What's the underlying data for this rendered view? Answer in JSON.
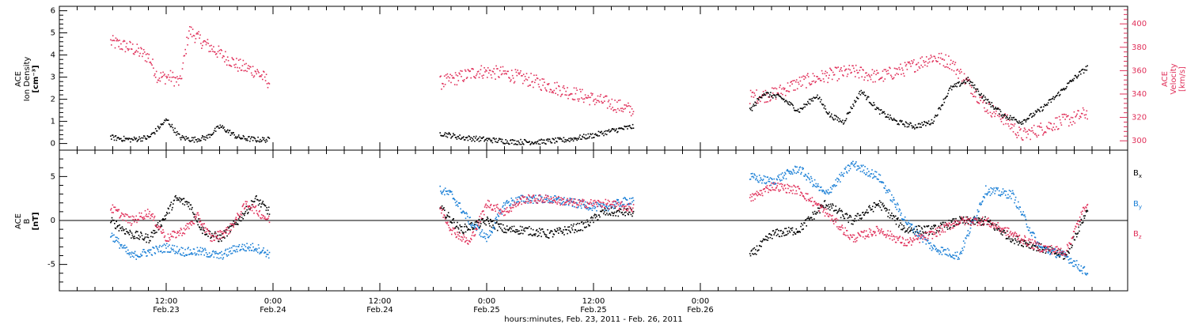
{
  "chart_data": [
    {
      "type": "scatter",
      "panel": "top",
      "left_axis_label": [
        "ACE",
        "Ion Density",
        "[cm⁻³]"
      ],
      "right_axis_label": [
        "ACE",
        "Velocity",
        "[km/s]"
      ],
      "left_ylim": [
        -0.3,
        6.2
      ],
      "right_ylim": [
        292,
        415
      ],
      "left_ticks": [
        0,
        1,
        2,
        3,
        4,
        5,
        6
      ],
      "right_ticks": [
        300,
        320,
        340,
        360,
        380,
        400
      ],
      "colors": {
        "density": "#000000",
        "velocity": "#e0305a"
      },
      "series": [
        {
          "name": "Ion Density",
          "axis": "left",
          "color": "#000000",
          "segments": [
            {
              "x": [
                5.7,
                8,
                10,
                12,
                13.5,
                15,
                16.5,
                18,
                20,
                22,
                23.6
              ],
              "y": [
                0.3,
                0.2,
                0.3,
                1.1,
                0.3,
                0.2,
                0.3,
                0.8,
                0.3,
                0.2,
                0.2
              ]
            },
            {
              "x": [
                42.7,
                45,
                48,
                51,
                54,
                57,
                60,
                62,
                64.5
              ],
              "y": [
                0.5,
                0.3,
                0.2,
                0.1,
                0.1,
                0.2,
                0.4,
                0.6,
                0.8
              ]
            },
            {
              "x": [
                77.5,
                79,
                81,
                83,
                85,
                86.5,
                88,
                90,
                92,
                94,
                96,
                98,
                100,
                102,
                104,
                106,
                108,
                110,
                112,
                114,
                115.5
              ],
              "y": [
                1.5,
                2.3,
                2.1,
                1.5,
                2.2,
                1.3,
                1.0,
                2.4,
                1.5,
                1.0,
                0.8,
                1.0,
                2.5,
                2.9,
                2.0,
                1.3,
                1.0,
                1.5,
                2.2,
                3.0,
                3.5
              ]
            }
          ]
        },
        {
          "name": "Velocity",
          "axis": "right",
          "color": "#e0305a",
          "segments": [
            {
              "x": [
                5.7,
                8,
                10,
                11,
                12.5,
                13.5,
                14.5,
                16,
                18,
                20,
                22,
                23.6
              ],
              "y": [
                385,
                380,
                372,
                355,
                355,
                350,
                395,
                385,
                375,
                365,
                360,
                350
              ]
            },
            {
              "x": [
                42.7,
                45,
                47,
                50,
                53,
                56,
                59,
                62,
                64.5
              ],
              "y": [
                350,
                355,
                360,
                358,
                352,
                345,
                338,
                332,
                326
              ]
            },
            {
              "x": [
                77.5,
                80,
                83,
                86,
                89,
                92,
                95,
                98,
                100,
                102,
                104,
                106,
                108,
                110,
                112,
                114,
                115.5
              ],
              "y": [
                338,
                340,
                350,
                356,
                360,
                355,
                362,
                372,
                368,
                350,
                330,
                320,
                305,
                310,
                316,
                320,
                325
              ]
            }
          ]
        }
      ]
    },
    {
      "type": "scatter",
      "panel": "bottom",
      "left_axis_label": [
        "ACE",
        "B",
        "[nT]"
      ],
      "ylim": [
        -8,
        8
      ],
      "ticks": [
        -5,
        0,
        5
      ],
      "zero_line": true,
      "colors": {
        "Bx": "#000000",
        "By": "#1a7fd6",
        "Bz": "#e0305a"
      },
      "legend": [
        {
          "label": "B",
          "sub": "x",
          "color": "#000000"
        },
        {
          "label": "B",
          "sub": "y",
          "color": "#1a7fd6"
        },
        {
          "label": "B",
          "sub": "z",
          "color": "#e0305a"
        }
      ],
      "series": [
        {
          "name": "Bx",
          "color": "#000000",
          "segments": [
            {
              "x": [
                5.7,
                8,
                10,
                11.5,
                13,
                14.5,
                16,
                18,
                20,
                22,
                23.6
              ],
              "y": [
                0,
                -1.5,
                -2,
                0,
                2.5,
                2.0,
                -1,
                -2,
                0,
                2.5,
                1
              ]
            },
            {
              "x": [
                42.7,
                45,
                48,
                50,
                52,
                55,
                57,
                59,
                61,
                64.5
              ],
              "y": [
                1.5,
                -1,
                0,
                -1,
                -1,
                -1.5,
                -1,
                -0.5,
                1,
                1
              ]
            },
            {
              "x": [
                77.5,
                80,
                83,
                86,
                89,
                92,
                95,
                98,
                101,
                104,
                107,
                110,
                113,
                115.5
              ],
              "y": [
                -4,
                -1.5,
                -1,
                2,
                0,
                2,
                -1,
                -1,
                0,
                0,
                -2,
                -3,
                -4,
                1.5
              ]
            }
          ]
        },
        {
          "name": "By",
          "color": "#1a7fd6",
          "segments": [
            {
              "x": [
                5.7,
                8,
                10,
                12,
                14,
                16,
                18,
                20,
                22,
                23.6
              ],
              "y": [
                -1.5,
                -4,
                -3.5,
                -3,
                -3.5,
                -3.5,
                -4,
                -3,
                -3,
                -3.8
              ]
            },
            {
              "x": [
                42.7,
                44,
                46,
                48,
                50,
                52,
                55,
                58,
                61,
                64.5
              ],
              "y": [
                3.5,
                3,
                0,
                -2,
                2,
                2.5,
                2.5,
                2.0,
                1.5,
                2.5
              ]
            },
            {
              "x": [
                77.5,
                80,
                83,
                86,
                89,
                92,
                95,
                98,
                101,
                104,
                107,
                110,
                113,
                115.5
              ],
              "y": [
                5,
                4.5,
                6,
                3,
                6.5,
                5,
                0,
                -3,
                -4,
                3.5,
                3,
                -3,
                -4,
                -6
              ]
            }
          ]
        },
        {
          "name": "Bz",
          "color": "#e0305a",
          "segments": [
            {
              "x": [
                5.7,
                8,
                10,
                12,
                14,
                15.5,
                17,
                19,
                21,
                23.6
              ],
              "y": [
                1.5,
                0,
                1,
                -2,
                -1,
                0.5,
                -2,
                -1,
                2,
                0
              ]
            },
            {
              "x": [
                42.7,
                44,
                46,
                48,
                50,
                52,
                55,
                58,
                61,
                64.5
              ],
              "y": [
                1.5,
                -1,
                -2.5,
                2,
                1,
                2.5,
                2.5,
                2.0,
                2.0,
                1.5
              ]
            },
            {
              "x": [
                77.5,
                80,
                83,
                86,
                89,
                92,
                95,
                98,
                101,
                104,
                107,
                110,
                113,
                115.5
              ],
              "y": [
                2.5,
                4,
                3.5,
                1,
                -2,
                -1,
                -2.5,
                -1.5,
                0,
                0,
                -1.5,
                -3,
                -3.5,
                2.5
              ]
            }
          ]
        }
      ]
    }
  ],
  "x_axis": {
    "label": "hours:minutes, Feb. 23, 2011 - Feb. 26, 2011",
    "xlim": [
      0,
      120
    ],
    "ticks": [
      {
        "x": 12,
        "time": "12:00",
        "date": "Feb.23"
      },
      {
        "x": 24,
        "time": "0:00",
        "date": "Feb.24"
      },
      {
        "x": 36,
        "time": "12:00",
        "date": "Feb.24"
      },
      {
        "x": 48,
        "time": "0:00",
        "date": "Feb.25"
      },
      {
        "x": 60,
        "time": "12:00",
        "date": "Feb.25"
      },
      {
        "x": 72,
        "time": "0:00",
        "date": "Feb.26"
      }
    ]
  }
}
